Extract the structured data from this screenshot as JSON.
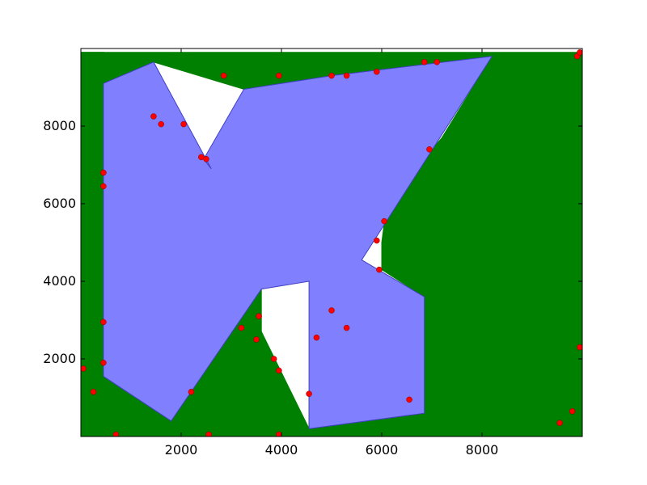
{
  "chart_data": {
    "type": "scatter",
    "title": "",
    "xlabel": "",
    "ylabel": "",
    "xlim": [
      0,
      10000
    ],
    "ylim": [
      0,
      10000
    ],
    "xticks": [
      2000,
      4000,
      6000,
      8000
    ],
    "yticks": [
      2000,
      4000,
      6000,
      8000
    ],
    "xtick_labels": [
      "2000",
      "4000",
      "6000",
      "8000"
    ],
    "ytick_labels": [
      "2000",
      "4000",
      "6000",
      "8000"
    ],
    "grid": false,
    "colors": {
      "polygon_fill": "#8080ff",
      "polygon_edge": "#4040c0",
      "edges": "#008000",
      "points": "#ff0000"
    },
    "free_space_polygon": [
      [
        450,
        9100
      ],
      [
        1450,
        9650
      ],
      [
        2600,
        6900
      ],
      [
        2450,
        7150
      ],
      [
        3250,
        8950
      ],
      [
        5000,
        9300
      ],
      [
        8200,
        9800
      ],
      [
        5600,
        4550
      ],
      [
        6850,
        3600
      ],
      [
        6850,
        600
      ],
      [
        4550,
        200
      ],
      [
        4550,
        4000
      ],
      [
        3600,
        3800
      ],
      [
        1800,
        400
      ],
      [
        450,
        1550
      ]
    ],
    "edge_regions": [
      {
        "name": "top-band",
        "points": [
          [
            0,
            9900
          ],
          [
            10000,
            9900
          ],
          [
            10000,
            9650
          ],
          [
            8200,
            9750
          ],
          [
            5000,
            9300
          ],
          [
            3250,
            8950
          ],
          [
            1450,
            9650
          ],
          [
            450,
            9100
          ],
          [
            0,
            9850
          ]
        ]
      },
      {
        "name": "top-left-wedge",
        "points": [
          [
            450,
            9900
          ],
          [
            1450,
            9650
          ],
          [
            2450,
            7200
          ],
          [
            2600,
            6950
          ],
          [
            450,
            9200
          ]
        ]
      },
      {
        "name": "left-band",
        "points": [
          [
            0,
            9900
          ],
          [
            450,
            9900
          ],
          [
            450,
            1550
          ],
          [
            1800,
            400
          ],
          [
            0,
            0
          ]
        ]
      },
      {
        "name": "bottom-band",
        "points": [
          [
            0,
            0
          ],
          [
            1800,
            400
          ],
          [
            3600,
            3800
          ],
          [
            3600,
            2700
          ],
          [
            4550,
            200
          ],
          [
            4550,
            1100
          ],
          [
            4900,
            2600
          ],
          [
            5300,
            2800
          ],
          [
            6850,
            600
          ],
          [
            10000,
            0
          ]
        ]
      },
      {
        "name": "right-block",
        "points": [
          [
            8200,
            9800
          ],
          [
            10000,
            9900
          ],
          [
            10000,
            0
          ],
          [
            6850,
            600
          ],
          [
            6850,
            3600
          ],
          [
            6000,
            4300
          ],
          [
            6000,
            5000
          ],
          [
            6050,
            5500
          ],
          [
            7000,
            7400
          ],
          [
            7200,
            7700
          ]
        ]
      },
      {
        "name": "center-spike-left",
        "points": [
          [
            1800,
            400
          ],
          [
            3200,
            2800
          ],
          [
            3600,
            2700
          ],
          [
            4550,
            200
          ]
        ]
      },
      {
        "name": "center-spike-right",
        "points": [
          [
            4550,
            200
          ],
          [
            4700,
            2600
          ],
          [
            5000,
            3250
          ],
          [
            5300,
            2800
          ],
          [
            6850,
            600
          ]
        ]
      }
    ],
    "points": [
      [
        700,
        50
      ],
      [
        250,
        1150
      ],
      [
        50,
        1750
      ],
      [
        450,
        1900
      ],
      [
        450,
        2950
      ],
      [
        450,
        6450
      ],
      [
        450,
        6800
      ],
      [
        1450,
        8250
      ],
      [
        1600,
        8050
      ],
      [
        2050,
        8050
      ],
      [
        2400,
        7200
      ],
      [
        2500,
        7150
      ],
      [
        2850,
        9300
      ],
      [
        3950,
        9300
      ],
      [
        5000,
        9300
      ],
      [
        5300,
        9300
      ],
      [
        5900,
        9400
      ],
      [
        6850,
        9650
      ],
      [
        7100,
        9650
      ],
      [
        9900,
        9800
      ],
      [
        9950,
        9900
      ],
      [
        6950,
        7400
      ],
      [
        6050,
        5550
      ],
      [
        5900,
        5050
      ],
      [
        5950,
        4300
      ],
      [
        2200,
        1150
      ],
      [
        3200,
        2800
      ],
      [
        3550,
        3100
      ],
      [
        3500,
        2500
      ],
      [
        3850,
        2000
      ],
      [
        3950,
        1700
      ],
      [
        4550,
        1100
      ],
      [
        4700,
        2550
      ],
      [
        5000,
        3250
      ],
      [
        5300,
        2800
      ],
      [
        6550,
        950
      ],
      [
        2550,
        50
      ],
      [
        3950,
        50
      ],
      [
        9550,
        350
      ],
      [
        9800,
        650
      ],
      [
        9950,
        2300
      ]
    ]
  }
}
